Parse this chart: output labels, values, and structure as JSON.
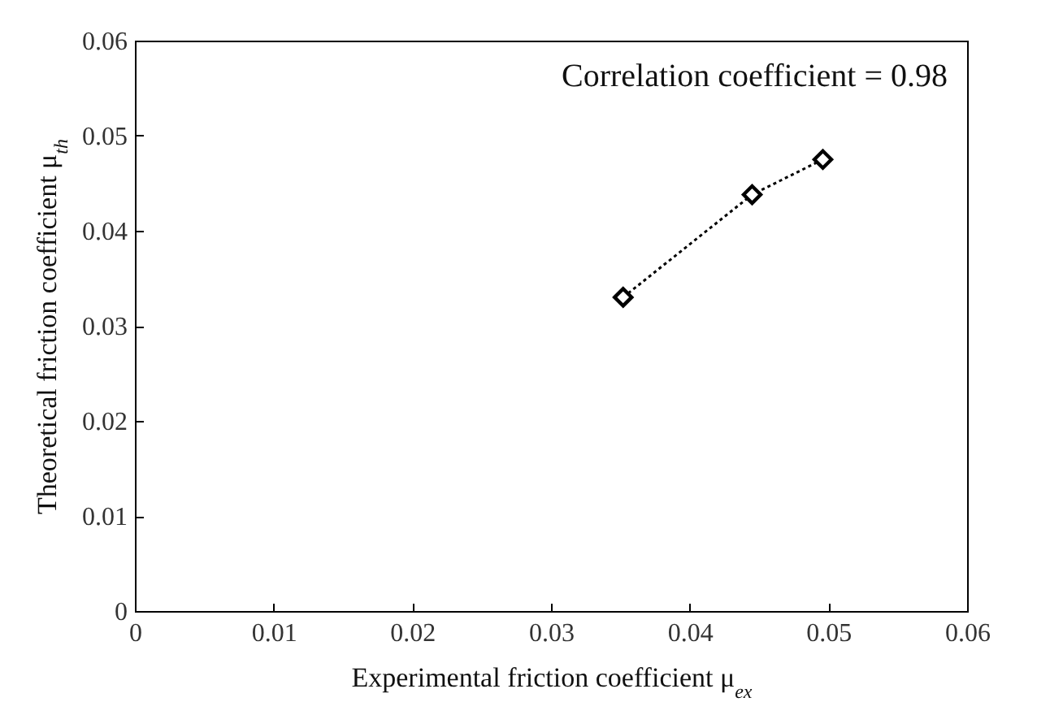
{
  "chart_data": {
    "type": "line",
    "xlabel": "Experimental friction coefficient μ$_{ex}$",
    "ylabel": "Theoretical friction coefficient μ$_{th}$",
    "annotations": [
      "Correlation coefficient = 0.98"
    ],
    "x": [
      0.0352,
      0.0445,
      0.0496
    ],
    "series": [
      {
        "color": "#000000",
        "values": [
          0.033,
          0.0438,
          0.0475
        ]
      }
    ],
    "marker": "diamond",
    "line_style": "dotted",
    "xlim": [
      0,
      0.06
    ],
    "xticks": [
      0,
      0.01,
      0.02,
      0.03,
      0.04,
      0.05,
      0.06
    ],
    "ylim": [
      0,
      0.06
    ],
    "yticks": [
      0,
      0.01,
      0.02,
      0.03,
      0.04,
      0.05,
      0.06
    ]
  }
}
